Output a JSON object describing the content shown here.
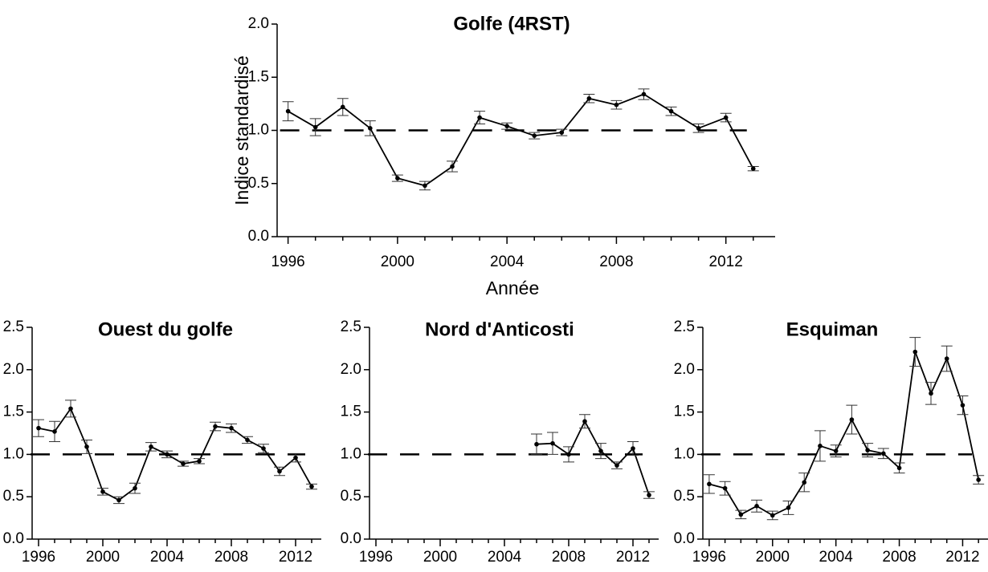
{
  "chart_data": [
    {
      "type": "line",
      "title": "Golfe (4RST)",
      "xlabel": "Année",
      "ylabel": "Indice standardisé",
      "xlim": [
        1995.6,
        2013.8
      ],
      "ylim": [
        0,
        2
      ],
      "xticks": [
        "1996",
        "2000",
        "2004",
        "2008",
        "2012"
      ],
      "yticks": [
        "0.0",
        "0.5",
        "1.0",
        "1.5",
        "2.0"
      ],
      "reference_line": 1.0,
      "series": [
        {
          "x": [
            1996,
            1997,
            1998,
            1999,
            2000,
            2001,
            2002,
            2003,
            2004,
            2005,
            2006,
            2007,
            2008,
            2009,
            2010,
            2011,
            2012,
            2013
          ],
          "y": [
            1.18,
            1.03,
            1.22,
            1.02,
            0.55,
            0.48,
            0.66,
            1.12,
            1.04,
            0.95,
            0.98,
            1.3,
            1.24,
            1.34,
            1.18,
            1.02,
            1.12,
            0.64
          ],
          "err": [
            0.09,
            0.08,
            0.08,
            0.07,
            0.03,
            0.04,
            0.05,
            0.06,
            0.03,
            0.03,
            0.03,
            0.04,
            0.04,
            0.05,
            0.04,
            0.04,
            0.04,
            0.02
          ]
        }
      ]
    },
    {
      "type": "line",
      "title": "Ouest du golfe",
      "xlim": [
        1995.6,
        2013.6
      ],
      "ylim": [
        0,
        2.5
      ],
      "xticks": [
        "1996",
        "2000",
        "2004",
        "2008",
        "2012"
      ],
      "yticks": [
        "0.0",
        "0.5",
        "1.0",
        "1.5",
        "2.0",
        "2.5"
      ],
      "reference_line": 1.0,
      "series": [
        {
          "x": [
            1996,
            1997,
            1998,
            1999,
            2000,
            2001,
            2002,
            2003,
            2004,
            2005,
            2006,
            2007,
            2008,
            2009,
            2010,
            2011,
            2012,
            2013
          ],
          "y": [
            1.31,
            1.27,
            1.54,
            1.09,
            0.56,
            0.46,
            0.6,
            1.09,
            1.0,
            0.89,
            0.92,
            1.33,
            1.31,
            1.17,
            1.07,
            0.8,
            0.96,
            0.62
          ],
          "err": [
            0.1,
            0.12,
            0.1,
            0.08,
            0.04,
            0.04,
            0.06,
            0.05,
            0.04,
            0.03,
            0.03,
            0.05,
            0.05,
            0.04,
            0.05,
            0.05,
            0.05,
            0.03
          ]
        }
      ]
    },
    {
      "type": "line",
      "title": "Nord d'Anticosti",
      "xlim": [
        1995.6,
        2013.6
      ],
      "ylim": [
        0,
        2.5
      ],
      "xticks": [
        "1996",
        "2000",
        "2004",
        "2008",
        "2012"
      ],
      "yticks": [
        "0.0",
        "0.5",
        "1.0",
        "1.5",
        "2.0",
        "2.5"
      ],
      "reference_line": 1.0,
      "series": [
        {
          "x": [
            2006,
            2007,
            2008,
            2009,
            2010,
            2011,
            2012,
            2013
          ],
          "y": [
            1.12,
            1.13,
            1.0,
            1.39,
            1.04,
            0.87,
            1.07,
            0.52
          ],
          "err": [
            0.12,
            0.13,
            0.09,
            0.08,
            0.09,
            0.04,
            0.08,
            0.04
          ]
        }
      ]
    },
    {
      "type": "line",
      "title": "Esquiman",
      "xlim": [
        1995.6,
        2013.6
      ],
      "ylim": [
        0,
        2.5
      ],
      "xticks": [
        "1996",
        "2000",
        "2004",
        "2008",
        "2012"
      ],
      "yticks": [
        "0.0",
        "0.5",
        "1.0",
        "1.5",
        "2.0",
        "2.5"
      ],
      "reference_line": 1.0,
      "series": [
        {
          "x": [
            1996,
            1997,
            1998,
            1999,
            2000,
            2001,
            2002,
            2003,
            2004,
            2005,
            2006,
            2007,
            2008,
            2009,
            2010,
            2011,
            2012,
            2013
          ],
          "y": [
            0.65,
            0.6,
            0.29,
            0.39,
            0.28,
            0.37,
            0.67,
            1.1,
            1.04,
            1.41,
            1.05,
            1.01,
            0.84,
            2.21,
            1.72,
            2.13,
            1.58,
            0.7
          ],
          "err": [
            0.11,
            0.08,
            0.05,
            0.07,
            0.05,
            0.08,
            0.11,
            0.18,
            0.07,
            0.17,
            0.08,
            0.06,
            0.06,
            0.17,
            0.13,
            0.15,
            0.11,
            0.05
          ]
        }
      ]
    }
  ]
}
